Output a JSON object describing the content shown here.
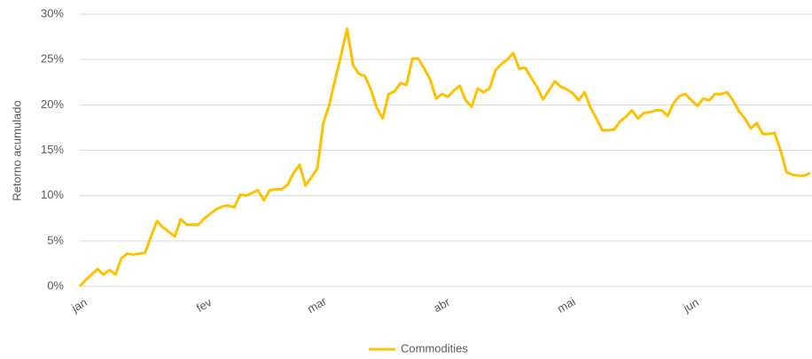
{
  "chart_data": {
    "type": "line",
    "ylabel": "Retorno acumulado",
    "categories": [
      "jan",
      null,
      null,
      null,
      null,
      null,
      null,
      null,
      null,
      null,
      null,
      null,
      null,
      null,
      null,
      null,
      null,
      null,
      null,
      null,
      null,
      "fev",
      null,
      null,
      null,
      null,
      null,
      null,
      null,
      null,
      null,
      null,
      null,
      null,
      null,
      null,
      null,
      null,
      null,
      null,
      "mar",
      null,
      null,
      null,
      null,
      null,
      null,
      null,
      null,
      null,
      null,
      null,
      null,
      null,
      null,
      null,
      null,
      null,
      null,
      null,
      null,
      "abr",
      null,
      null,
      null,
      null,
      null,
      null,
      null,
      null,
      null,
      null,
      null,
      null,
      null,
      null,
      null,
      null,
      null,
      null,
      null,
      null,
      "mai",
      null,
      null,
      null,
      null,
      null,
      null,
      null,
      null,
      null,
      null,
      null,
      null,
      null,
      null,
      null,
      null,
      null,
      null,
      null,
      null,
      "jun",
      null,
      null,
      null,
      null,
      null,
      null,
      null,
      null,
      null,
      null,
      null,
      null,
      null,
      null,
      null,
      null,
      null,
      null,
      null,
      null
    ],
    "series": [
      {
        "name": "Commodities",
        "color": "#FFC000",
        "values": [
          0,
          0.7,
          1.3,
          1.9,
          1.3,
          1.8,
          1.3,
          3.1,
          3.6,
          3.5,
          3.6,
          3.7,
          5.5,
          7.2,
          6.5,
          6.0,
          5.5,
          7.4,
          6.8,
          6.8,
          6.8,
          7.5,
          8.0,
          8.5,
          8.8,
          8.9,
          8.7,
          10.1,
          10.0,
          10.3,
          10.6,
          9.5,
          10.6,
          10.7,
          10.7,
          11.2,
          12.5,
          13.4,
          11.1,
          12.0,
          13.0,
          18.0,
          20.0,
          22.8,
          25.5,
          28.4,
          24.4,
          23.4,
          23.2,
          21.7,
          19.7,
          18.5,
          21.2,
          21.5,
          22.4,
          22.2,
          25.1,
          25.1,
          24.0,
          22.8,
          20.7,
          21.2,
          20.9,
          21.6,
          22.1,
          20.5,
          19.8,
          21.8,
          21.4,
          21.8,
          23.8,
          24.5,
          25.0,
          25.7,
          24.0,
          24.1,
          23.0,
          22.0,
          20.6,
          21.6,
          22.6,
          22.0,
          21.7,
          21.3,
          20.5,
          21.4,
          19.7,
          18.5,
          17.2,
          17.2,
          17.3,
          18.2,
          18.7,
          19.4,
          18.5,
          19.1,
          19.2,
          19.4,
          19.4,
          18.8,
          20.2,
          21.0,
          21.2,
          20.5,
          19.9,
          20.7,
          20.5,
          21.2,
          21.2,
          21.4,
          20.5,
          19.3,
          18.5,
          17.4,
          18.0,
          16.8,
          16.8,
          16.9,
          15.0,
          12.6,
          12.3,
          12.2,
          12.2,
          12.5
        ]
      }
    ],
    "ylim": [
      0,
      30
    ],
    "yticks": [
      {
        "value": 0,
        "label": "0%"
      },
      {
        "value": 5,
        "label": "5%"
      },
      {
        "value": 10,
        "label": "10%"
      },
      {
        "value": 15,
        "label": "15%"
      },
      {
        "value": 20,
        "label": "20%"
      },
      {
        "value": 25,
        "label": "25%"
      },
      {
        "value": 30,
        "label": "30%"
      }
    ],
    "grid": true,
    "legend": "bottom"
  }
}
